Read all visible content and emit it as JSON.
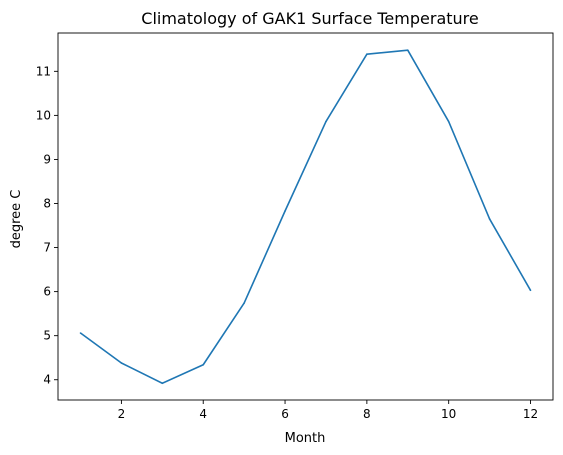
{
  "chart_data": {
    "type": "line",
    "title": "Climatology of GAK1 Surface Temperature",
    "xlabel": "Month",
    "ylabel": "degree C",
    "xlim": [
      0.45,
      12.55
    ],
    "ylim": [
      3.54,
      11.87
    ],
    "xticks": [
      2,
      4,
      6,
      8,
      10,
      12
    ],
    "yticks": [
      4,
      5,
      6,
      7,
      8,
      9,
      10,
      11
    ],
    "grid": false,
    "series": [
      {
        "color": "#1f77b4",
        "x": [
          1,
          2,
          3,
          4,
          5,
          6,
          7,
          8,
          9,
          10,
          11,
          12
        ],
        "y": [
          5.06,
          4.38,
          3.92,
          4.34,
          5.74,
          7.83,
          9.86,
          11.39,
          11.48,
          9.86,
          7.65,
          6.03
        ]
      }
    ]
  }
}
